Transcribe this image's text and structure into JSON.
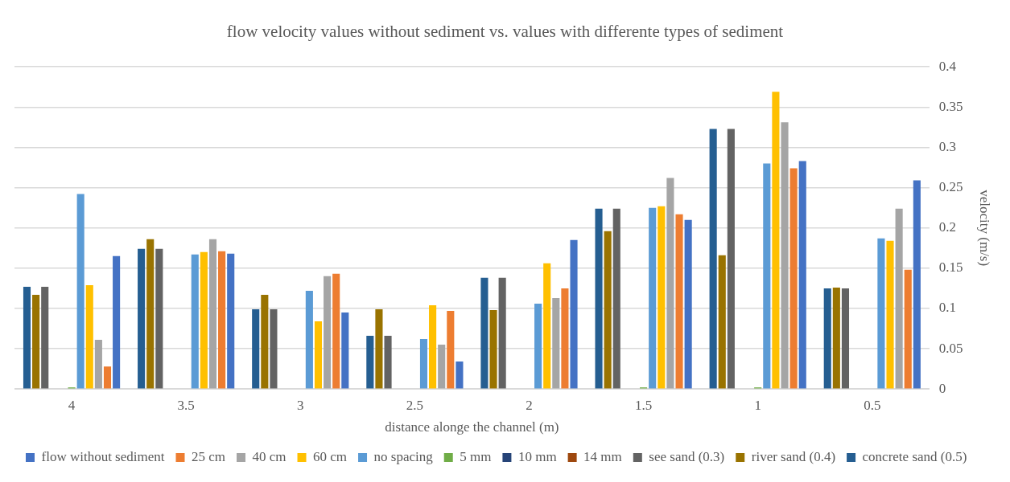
{
  "chart_data": {
    "type": "bar",
    "title": "flow velocity values without sediment vs. values with differente types of sediment",
    "xlabel": "distance alonge the channel (m)",
    "ylabel": "velocity (m/s)",
    "categories": [
      "4",
      "3.5",
      "3",
      "2.5",
      "2",
      "1.5",
      "1",
      "0.5"
    ],
    "series": [
      {
        "name": "flow without sediment",
        "color": "#4472c4",
        "values": [
          0.165,
          0.168,
          0.095,
          0.034,
          0.185,
          0.21,
          0.283,
          0.259
        ]
      },
      {
        "name": "25 cm",
        "color": "#ed7d31",
        "values": [
          0.028,
          0.171,
          0.143,
          0.097,
          0.125,
          0.217,
          0.274,
          0.148
        ]
      },
      {
        "name": "40 cm",
        "color": "#a5a5a5",
        "values": [
          0.061,
          0.186,
          0.14,
          0.055,
          0.113,
          0.262,
          0.331,
          0.224
        ]
      },
      {
        "name": "60 cm",
        "color": "#ffc000",
        "values": [
          0.129,
          0.17,
          0.084,
          0.104,
          0.156,
          0.227,
          0.369,
          0.184
        ]
      },
      {
        "name": "no spacing",
        "color": "#5b9bd5",
        "values": [
          0.242,
          0.167,
          0.122,
          0.062,
          0.106,
          0.225,
          0.28,
          0.187
        ]
      },
      {
        "name": "5 mm",
        "color": "#70ad47",
        "values": [
          0.002,
          null,
          null,
          null,
          null,
          0.002,
          0.002,
          null
        ]
      },
      {
        "name": "10 mm",
        "color": "#264478",
        "values": [
          null,
          null,
          null,
          null,
          null,
          null,
          null,
          null
        ]
      },
      {
        "name": "14 mm",
        "color": "#9e480e",
        "values": [
          null,
          null,
          null,
          null,
          null,
          null,
          null,
          null
        ]
      },
      {
        "name": "see sand (0.3)",
        "color": "#636363",
        "values": [
          0.127,
          0.174,
          0.099,
          0.066,
          0.138,
          0.224,
          0.323,
          0.125
        ]
      },
      {
        "name": "river sand (0.4)",
        "color": "#997300",
        "values": [
          0.117,
          0.186,
          0.117,
          0.099,
          0.098,
          0.196,
          0.166,
          0.126
        ]
      },
      {
        "name": "concrete sand (0.5)",
        "color": "#255e91",
        "values": [
          0.127,
          0.174,
          0.099,
          0.066,
          0.138,
          0.224,
          0.323,
          0.125
        ]
      }
    ],
    "ylim": [
      0,
      0.4
    ],
    "yticks": [
      0,
      0.05,
      0.1,
      0.15,
      0.2,
      0.25,
      0.3,
      0.35,
      0.4
    ],
    "grid": "y",
    "legend": "bottom"
  }
}
